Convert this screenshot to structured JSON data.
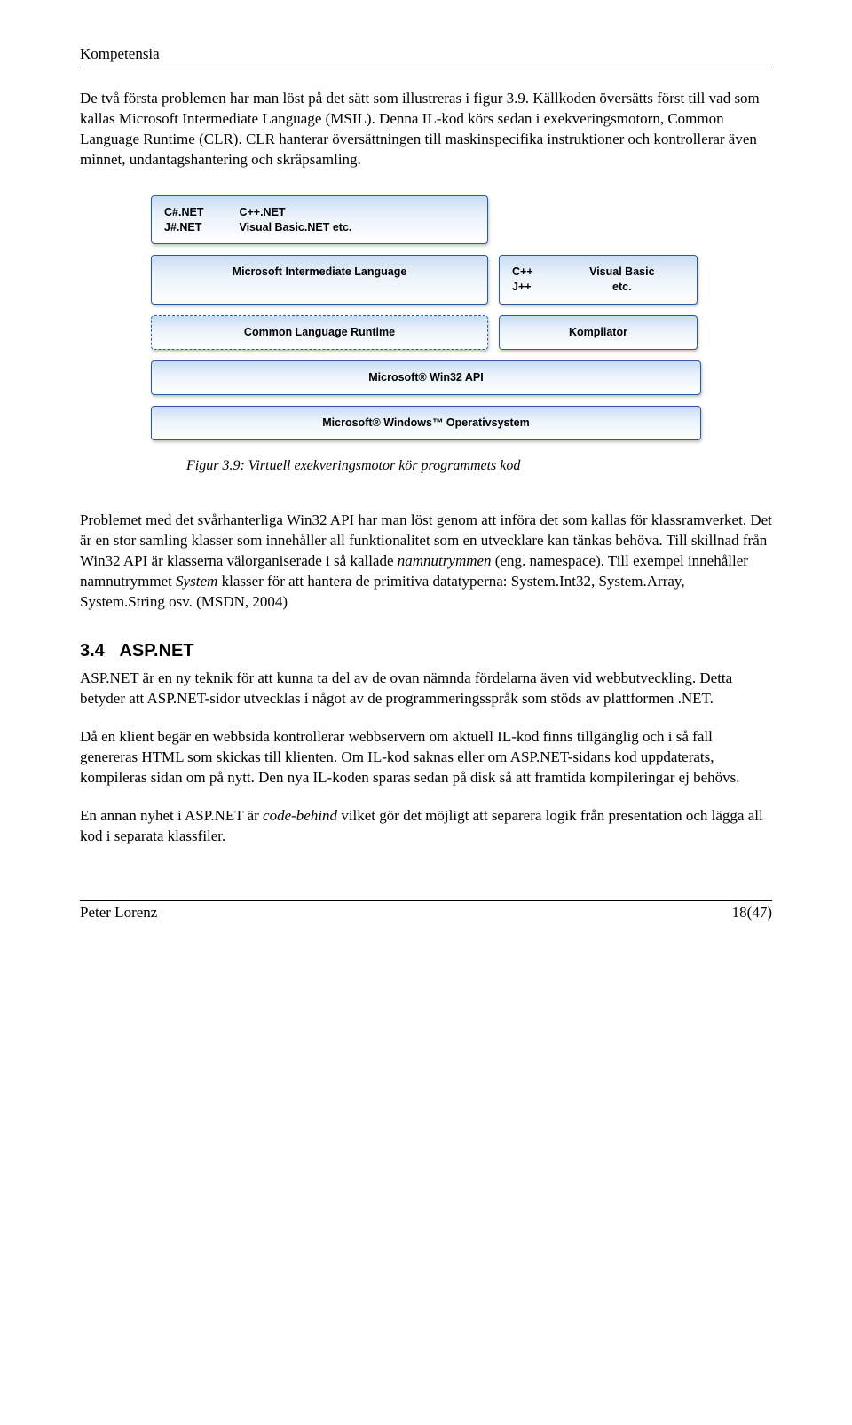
{
  "header": {
    "title": "Kompetensia"
  },
  "paragraphs": {
    "p1": "De två första problemen har man löst på det sätt som illustreras i figur 3.9. Källkoden översätts först till vad som kallas Microsoft Intermediate Language (MSIL). Denna IL-kod körs sedan i exekveringsmotorn, Common Language Runtime (CLR). CLR hanterar översättningen till maskinspecifika instruktioner och kontrollerar även minnet, undantagshantering och skräpsamling."
  },
  "diagram": {
    "type": "flowchart",
    "background_color": "#ffffff",
    "box_gradient_top": "#c7dcf3",
    "box_gradient_bottom": "#ffffff",
    "border_color": "#2a5a9a",
    "shadow_color": "rgba(0,0,0,0.25)",
    "font_family": "Verdana",
    "font_size_pt": 9,
    "font_weight": "bold",
    "boxes": {
      "langs_col1_a": "C#.NET",
      "langs_col1_b": "J#.NET",
      "langs_col2_a": "C++.NET",
      "langs_col2_b": "Visual Basic.NET etc.",
      "mil": "Microsoft Intermediate Language",
      "cpp_col1_a": "C++",
      "cpp_col1_b": "J++",
      "cpp_col2_a": "Visual Basic",
      "cpp_col2_b": "etc.",
      "clr": "Common Language Runtime",
      "kompilator": "Kompilator",
      "win32": "Microsoft® Win32 API",
      "os": "Microsoft® Windows™ Operativsystem"
    }
  },
  "figcaption": "Figur 3.9: Virtuell exekveringsmotor kör programmets kod",
  "para2": {
    "pre": "Problemet med det svårhanterliga Win32 API har man löst genom att införa det som kallas för ",
    "link": "klassramverket",
    "post": ". Det är en stor samling klasser som innehåller all funktionalitet som en utvecklare kan tänkas behöva. Till skillnad från Win32 API är klasserna välorganiserade i så kallade ",
    "italic1": "namnutrymmen",
    "post2": " (eng. namespace). Till exempel innehåller namnutrymmet ",
    "italic2": "System",
    "post3": " klasser för att hantera de primitiva datatyperna: System.Int32, System.Array, System.String osv. (MSDN, 2004)"
  },
  "section": {
    "number": "3.4",
    "title": "ASP.NET"
  },
  "para3": "ASP.NET är en ny teknik för att kunna ta del av de ovan nämnda fördelarna även vid webbutveckling. Detta betyder att ASP.NET-sidor utvecklas i något av de programmeringsspråk som stöds av plattformen .NET.",
  "para4": "Då en klient begär en webbsida kontrollerar webbservern om aktuell IL-kod finns tillgänglig och i så fall genereras HTML som skickas till klienten. Om IL-kod saknas eller om ASP.NET-sidans kod uppdaterats, kompileras sidan om på nytt. Den nya IL-koden sparas sedan på disk så att framtida kompileringar ej behövs.",
  "para5": {
    "pre": "En annan nyhet i ASP.NET är ",
    "italic": "code-behind",
    "post": " vilket gör det möjligt att separera logik från presentation och lägga all kod i separata klassfiler."
  },
  "footer": {
    "author": "Peter Lorenz",
    "page": "18(47)"
  }
}
